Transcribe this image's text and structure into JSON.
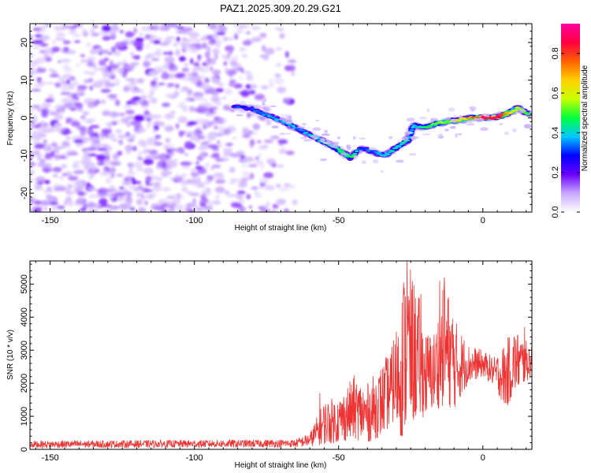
{
  "title": "PAZ1.2025.309.20.29.G21",
  "chart_data": [
    {
      "type": "heatmap",
      "xlabel": "Height of straight line (km)",
      "ylabel": "Frequency (Hz)",
      "xlim": [
        -157,
        17
      ],
      "ylim": [
        -25,
        25
      ],
      "xticks": [
        -150,
        -100,
        -50,
        0
      ],
      "yticks": [
        -20,
        -10,
        0,
        10,
        20
      ],
      "noise_region_x": [
        -157,
        -65
      ],
      "ridge": [
        {
          "x": -86,
          "y": 3,
          "a": 0.3
        },
        {
          "x": -80,
          "y": 2.5,
          "a": 0.32
        },
        {
          "x": -76,
          "y": 1,
          "a": 0.35
        },
        {
          "x": -72,
          "y": 0,
          "a": 0.35
        },
        {
          "x": -68,
          "y": -1.5,
          "a": 0.38
        },
        {
          "x": -64,
          "y": -3,
          "a": 0.35
        },
        {
          "x": -60,
          "y": -4.5,
          "a": 0.38
        },
        {
          "x": -56,
          "y": -6,
          "a": 0.4
        },
        {
          "x": -52,
          "y": -7.5,
          "a": 0.42
        },
        {
          "x": -49,
          "y": -9,
          "a": 0.45
        },
        {
          "x": -46,
          "y": -10.5,
          "a": 0.48
        },
        {
          "x": -42,
          "y": -8,
          "a": 0.3
        },
        {
          "x": -38,
          "y": -9,
          "a": 0.33
        },
        {
          "x": -34,
          "y": -10,
          "a": 0.38
        },
        {
          "x": -30,
          "y": -8,
          "a": 0.4
        },
        {
          "x": -26,
          "y": -6,
          "a": 0.42
        },
        {
          "x": -24,
          "y": -2,
          "a": 0.35
        },
        {
          "x": -20,
          "y": -2.5,
          "a": 0.45
        },
        {
          "x": -16,
          "y": -1.5,
          "a": 0.5
        },
        {
          "x": -12,
          "y": -1,
          "a": 0.55
        },
        {
          "x": -8,
          "y": -0.5,
          "a": 0.62
        },
        {
          "x": -4,
          "y": 0,
          "a": 0.72
        },
        {
          "x": 0,
          "y": 0,
          "a": 0.85
        },
        {
          "x": 4,
          "y": 0,
          "a": 0.92
        },
        {
          "x": 8,
          "y": 1,
          "a": 0.7
        },
        {
          "x": 12,
          "y": 2.5,
          "a": 0.6
        },
        {
          "x": 16,
          "y": 1,
          "a": 0.5
        }
      ],
      "colorbar": {
        "label": "Normalized spectral amplitude",
        "range": [
          0,
          0.95
        ],
        "ticks": [
          0.0,
          0.2,
          0.4,
          0.6,
          0.8
        ],
        "tick_labels": [
          "0.0",
          "0.2",
          "0.4",
          "0.6",
          "0.8"
        ],
        "colors": [
          "#ffffff",
          "#c8a8ff",
          "#6a00ff",
          "#0000ff",
          "#00c8ff",
          "#00ff3c",
          "#c8ff00",
          "#ffd000",
          "#ff6000",
          "#ff0040",
          "#ff00a0"
        ]
      }
    },
    {
      "type": "line",
      "xlabel": "Height of straight line (km)",
      "ylabel": "SNR (10 * v/v)",
      "xlim": [
        -157,
        17
      ],
      "ylim": [
        0,
        5700
      ],
      "xticks": [
        -150,
        -100,
        -50,
        0
      ],
      "yticks": [
        0,
        1000,
        2000,
        3000,
        4000,
        5000
      ],
      "color": "#ee3333",
      "envelope": [
        {
          "x": -157,
          "lo": 40,
          "hi": 260
        },
        {
          "x": -65,
          "lo": 60,
          "hi": 300
        },
        {
          "x": -60,
          "lo": 80,
          "hi": 500
        },
        {
          "x": -55,
          "lo": 150,
          "hi": 1500
        },
        {
          "x": -50,
          "lo": 200,
          "hi": 1600
        },
        {
          "x": -45,
          "lo": 300,
          "hi": 2200
        },
        {
          "x": -40,
          "lo": 200,
          "hi": 2000
        },
        {
          "x": -35,
          "lo": 400,
          "hi": 2600
        },
        {
          "x": -31,
          "lo": 800,
          "hi": 3200
        },
        {
          "x": -28,
          "lo": 300,
          "hi": 5000
        },
        {
          "x": -26,
          "lo": 700,
          "hi": 5700
        },
        {
          "x": -22,
          "lo": 900,
          "hi": 4600
        },
        {
          "x": -20,
          "lo": 1000,
          "hi": 3600
        },
        {
          "x": -17,
          "lo": 1200,
          "hi": 3600
        },
        {
          "x": -13,
          "lo": 1300,
          "hi": 5200
        },
        {
          "x": -10,
          "lo": 1200,
          "hi": 4000
        },
        {
          "x": -5,
          "lo": 2000,
          "hi": 3200
        },
        {
          "x": 0,
          "lo": 2200,
          "hi": 3000
        },
        {
          "x": 4,
          "lo": 1900,
          "hi": 2800
        },
        {
          "x": 8,
          "lo": 1200,
          "hi": 3300
        },
        {
          "x": 11,
          "lo": 1700,
          "hi": 3700
        },
        {
          "x": 17,
          "lo": 2200,
          "hi": 3100
        }
      ],
      "spikes": [
        {
          "x": -26.3,
          "y": 5700
        },
        {
          "x": -27.5,
          "y": 5050
        },
        {
          "x": -13.3,
          "y": 5200
        },
        {
          "x": -15.0,
          "y": 5100
        },
        {
          "x": -21.5,
          "y": 4700
        },
        {
          "x": -10.5,
          "y": 3950
        },
        {
          "x": 14.5,
          "y": 3700
        },
        {
          "x": -31.0,
          "y": 3300
        },
        {
          "x": -44.5,
          "y": 2250
        },
        {
          "x": -56.5,
          "y": 1700
        }
      ]
    }
  ]
}
